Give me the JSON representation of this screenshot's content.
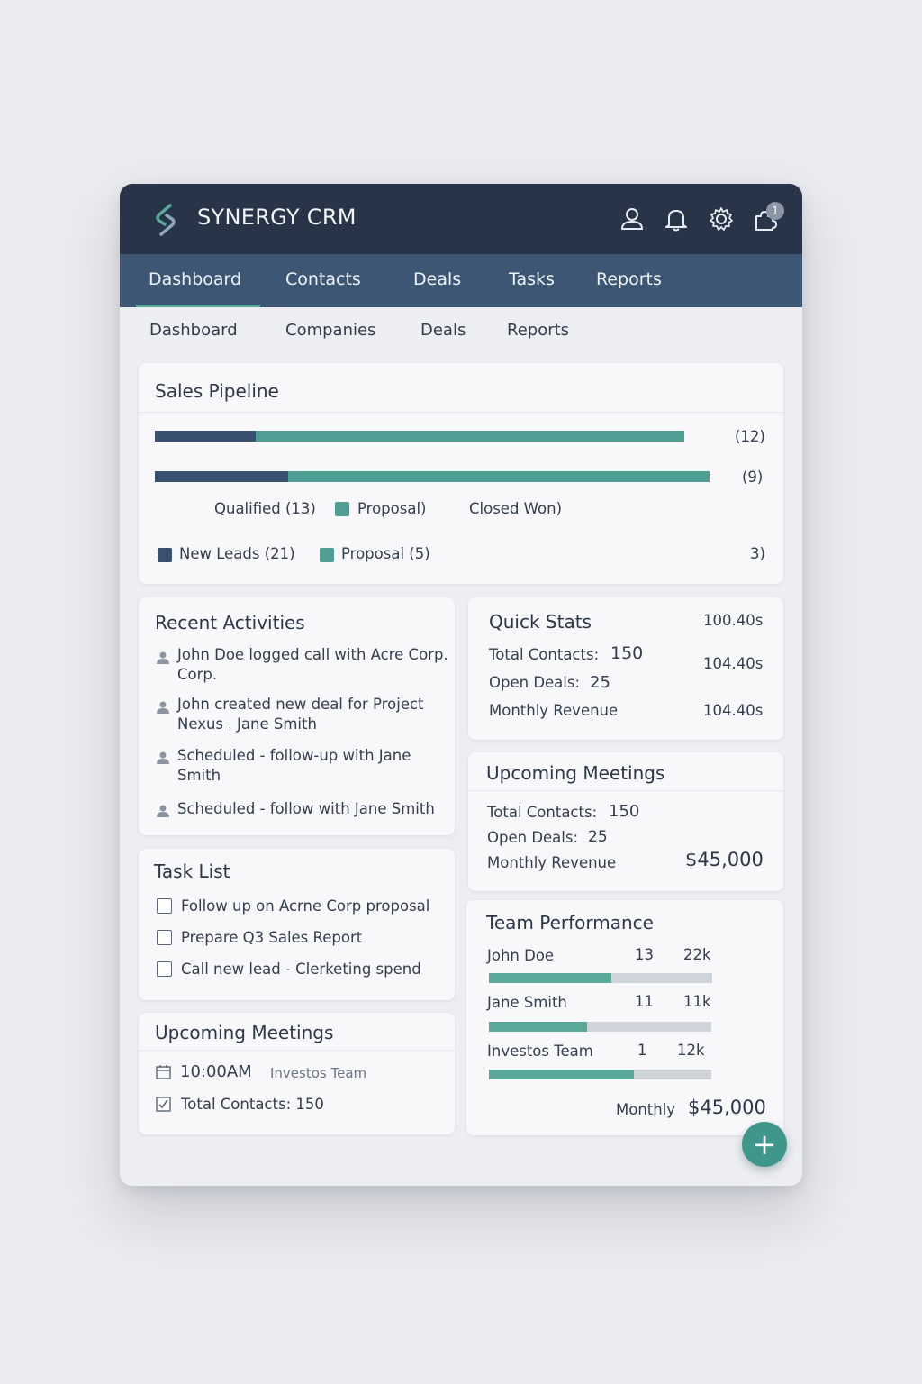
{
  "app": {
    "title": "SYNERGY CRM",
    "notification_count": "1"
  },
  "nav": {
    "tabs": [
      "Dashboard",
      "Contacts",
      "Deals",
      "Tasks",
      "Reports"
    ],
    "active": "Dashboard"
  },
  "subnav": {
    "items": [
      "Dashboard",
      "Companies",
      "Deals",
      "Reports"
    ]
  },
  "pipeline": {
    "title": "Sales Pipeline",
    "bars": [
      {
        "count": "(12)",
        "dark_fraction": 0.19
      },
      {
        "count": "(9)",
        "dark_fraction": 0.24
      }
    ],
    "legend_row1": [
      "Qualified (13)",
      "Proposal)",
      "Closed Won)"
    ],
    "legend_row2": [
      "New Leads (21)",
      "Proposal (5)"
    ],
    "legend_row2_right": "3)"
  },
  "activities": {
    "title": "Recent Activities",
    "items": [
      {
        "line1": "John Doe logged call with Acre Corp.",
        "line2": "Corp."
      },
      {
        "line1": "John created new deal for Project",
        "line2": "Nexus ˌ Jane Smith"
      },
      {
        "line1": "Scheduled - follow-up with Jane",
        "line2": "Smith"
      },
      {
        "line1": "Scheduled - follow  with Jane Smith",
        "line2": ""
      }
    ]
  },
  "quick_stats": {
    "title": "Quick Stats",
    "header_value": "100.40s",
    "rows": [
      {
        "label": "Total Contacts:",
        "value": "150",
        "right": "104.40s"
      },
      {
        "label": "Open Deals:",
        "value": "25",
        "right": ""
      },
      {
        "label": "Monthly Revenue",
        "value": "",
        "right": "104.40s"
      }
    ]
  },
  "upcoming_right": {
    "title": "Upcoming Meetings",
    "rows": [
      {
        "label": "Total Contacts:",
        "value": "150"
      },
      {
        "label": "Open Deals:",
        "value": "25"
      },
      {
        "label": "Monthly Revenue",
        "value": ""
      }
    ],
    "revenue": "$45,000"
  },
  "tasks": {
    "title": "Task List",
    "items": [
      "Follow up on Acrne Corp proposal",
      "Prepare Q3 Sales Report",
      "Call new lead - Clerketing spend"
    ]
  },
  "team": {
    "title": "Team Performance",
    "members": [
      {
        "name": "John Doe",
        "deals": "13",
        "amount": "22k",
        "fraction": 0.55
      },
      {
        "name": "Jane Smith",
        "deals": "11",
        "amount": "11k",
        "fraction": 0.44
      },
      {
        "name": "Investos Team",
        "deals": "1",
        "amount": "12k",
        "fraction": 0.65
      }
    ],
    "footer_label": "Monthly",
    "footer_value": "$45,000"
  },
  "upcoming_left": {
    "title": "Upcoming Meetings",
    "time": "10:00AM",
    "meeting_name": "Investos Team",
    "summary": "Total Contacts: 150"
  },
  "fab": {
    "label": "+"
  },
  "colors": {
    "header": "#283548",
    "nav": "#3d5674",
    "accent": "#4e9e93",
    "lead": "#3a5070"
  }
}
